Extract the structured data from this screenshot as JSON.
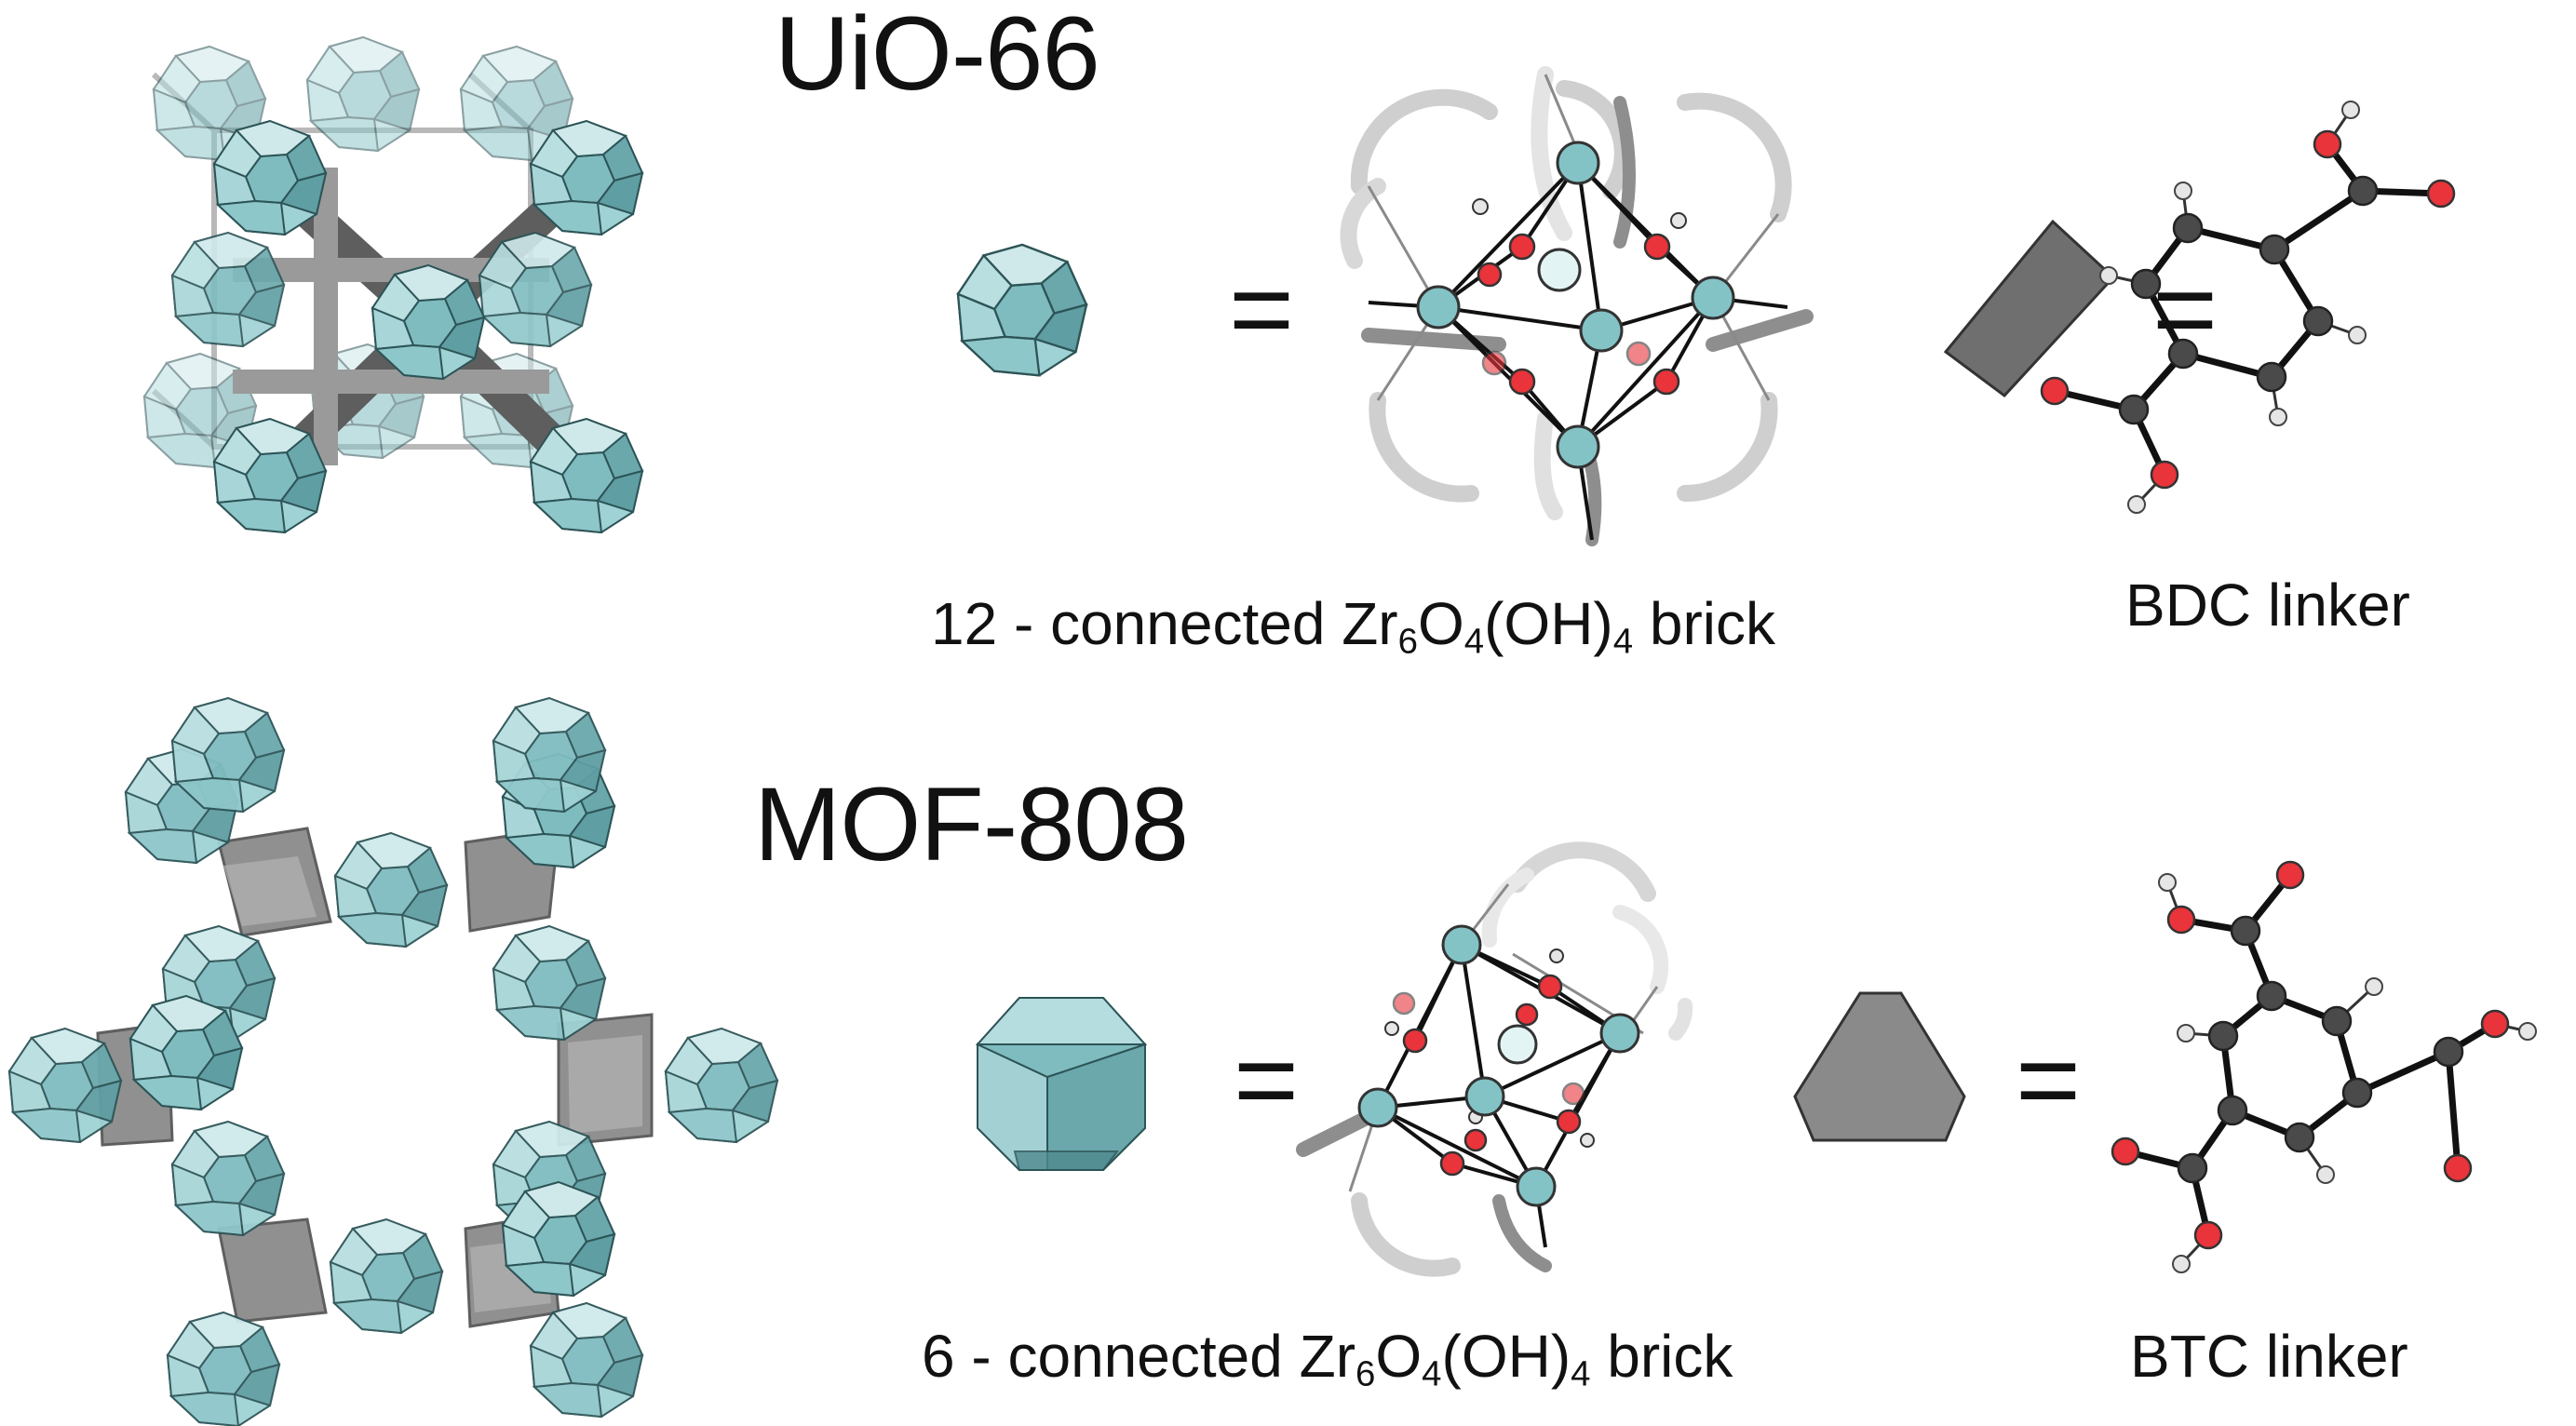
{
  "sections": {
    "uio66": {
      "title": "UiO-66",
      "brick": {
        "prefix": "12 - connected Zr",
        "sub1": "6",
        "mid1": "O",
        "sub2": "4",
        "mid2": "(OH)",
        "sub3": "4",
        "suffix": " brick"
      },
      "linker_label": "BDC linker",
      "equals": "="
    },
    "mof808": {
      "title": "MOF-808",
      "brick": {
        "prefix": "6 - connected Zr",
        "sub1": "6",
        "mid1": "O",
        "sub2": "4",
        "mid2": "(OH)",
        "sub3": "4",
        "suffix": " brick"
      },
      "linker_label": "BTC linker",
      "equals": "="
    }
  },
  "colors": {
    "zr_node": "#83c3c6",
    "zr_node_dark": "#5f9ea3",
    "zr_node_light": "#cfe9ea",
    "linker_gray": "#6f6f6f",
    "oxygen": "#e8343a",
    "carbon": "#3e3e3e",
    "hydrogen": "#e6e6e6",
    "bond": "#111111"
  }
}
